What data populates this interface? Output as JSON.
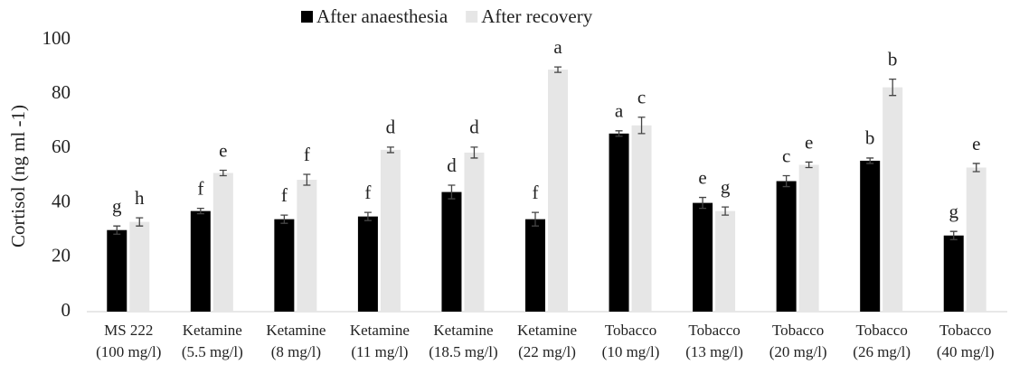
{
  "chart_data": {
    "type": "bar",
    "ylabel": "Cortisol (ng ml -1)",
    "categories": [
      [
        "MS 222",
        "(100 mg/l)"
      ],
      [
        "Ketamine",
        "(5.5 mg/l)"
      ],
      [
        "Ketamine",
        "(8 mg/l)"
      ],
      [
        "Ketamine",
        "(11 mg/l)"
      ],
      [
        "Ketamine",
        "(18.5 mg/l)"
      ],
      [
        "Ketamine",
        "(22 mg/l)"
      ],
      [
        "Tobacco",
        "(10 mg/l)"
      ],
      [
        "Tobacco",
        "(13 mg/l)"
      ],
      [
        "Tobacco",
        "(20 mg/l)"
      ],
      [
        "Tobacco",
        "(26 mg/l)"
      ],
      [
        "Tobacco",
        "(40 mg/l)"
      ]
    ],
    "series": [
      {
        "name": "After anaesthesia",
        "color": "#000000",
        "values": [
          30,
          37,
          34,
          35,
          44,
          34,
          65.5,
          40,
          48,
          55.5,
          28
        ],
        "errors": [
          1.5,
          1,
          1.5,
          1.5,
          2.5,
          2.5,
          1,
          2,
          2,
          1,
          1.5
        ],
        "letters": [
          "g",
          "f",
          "f",
          "f",
          "d",
          "f",
          "a",
          "e",
          "c",
          "b",
          "g"
        ]
      },
      {
        "name": "After recovery",
        "color": "#e6e6e6",
        "values": [
          33,
          51,
          48.5,
          59.5,
          58.5,
          89,
          68.5,
          37,
          54,
          82.5,
          53
        ],
        "errors": [
          1.5,
          1,
          2,
          1,
          2,
          1,
          3,
          1.5,
          1,
          3,
          1.5
        ],
        "letters": [
          "h",
          "e",
          "f",
          "d",
          "d",
          "a",
          "c",
          "g",
          "e",
          "b",
          "e"
        ]
      }
    ],
    "ylim": [
      0,
      100
    ],
    "yticks": [
      0,
      20,
      40,
      60,
      80,
      100
    ],
    "legend": "top"
  }
}
